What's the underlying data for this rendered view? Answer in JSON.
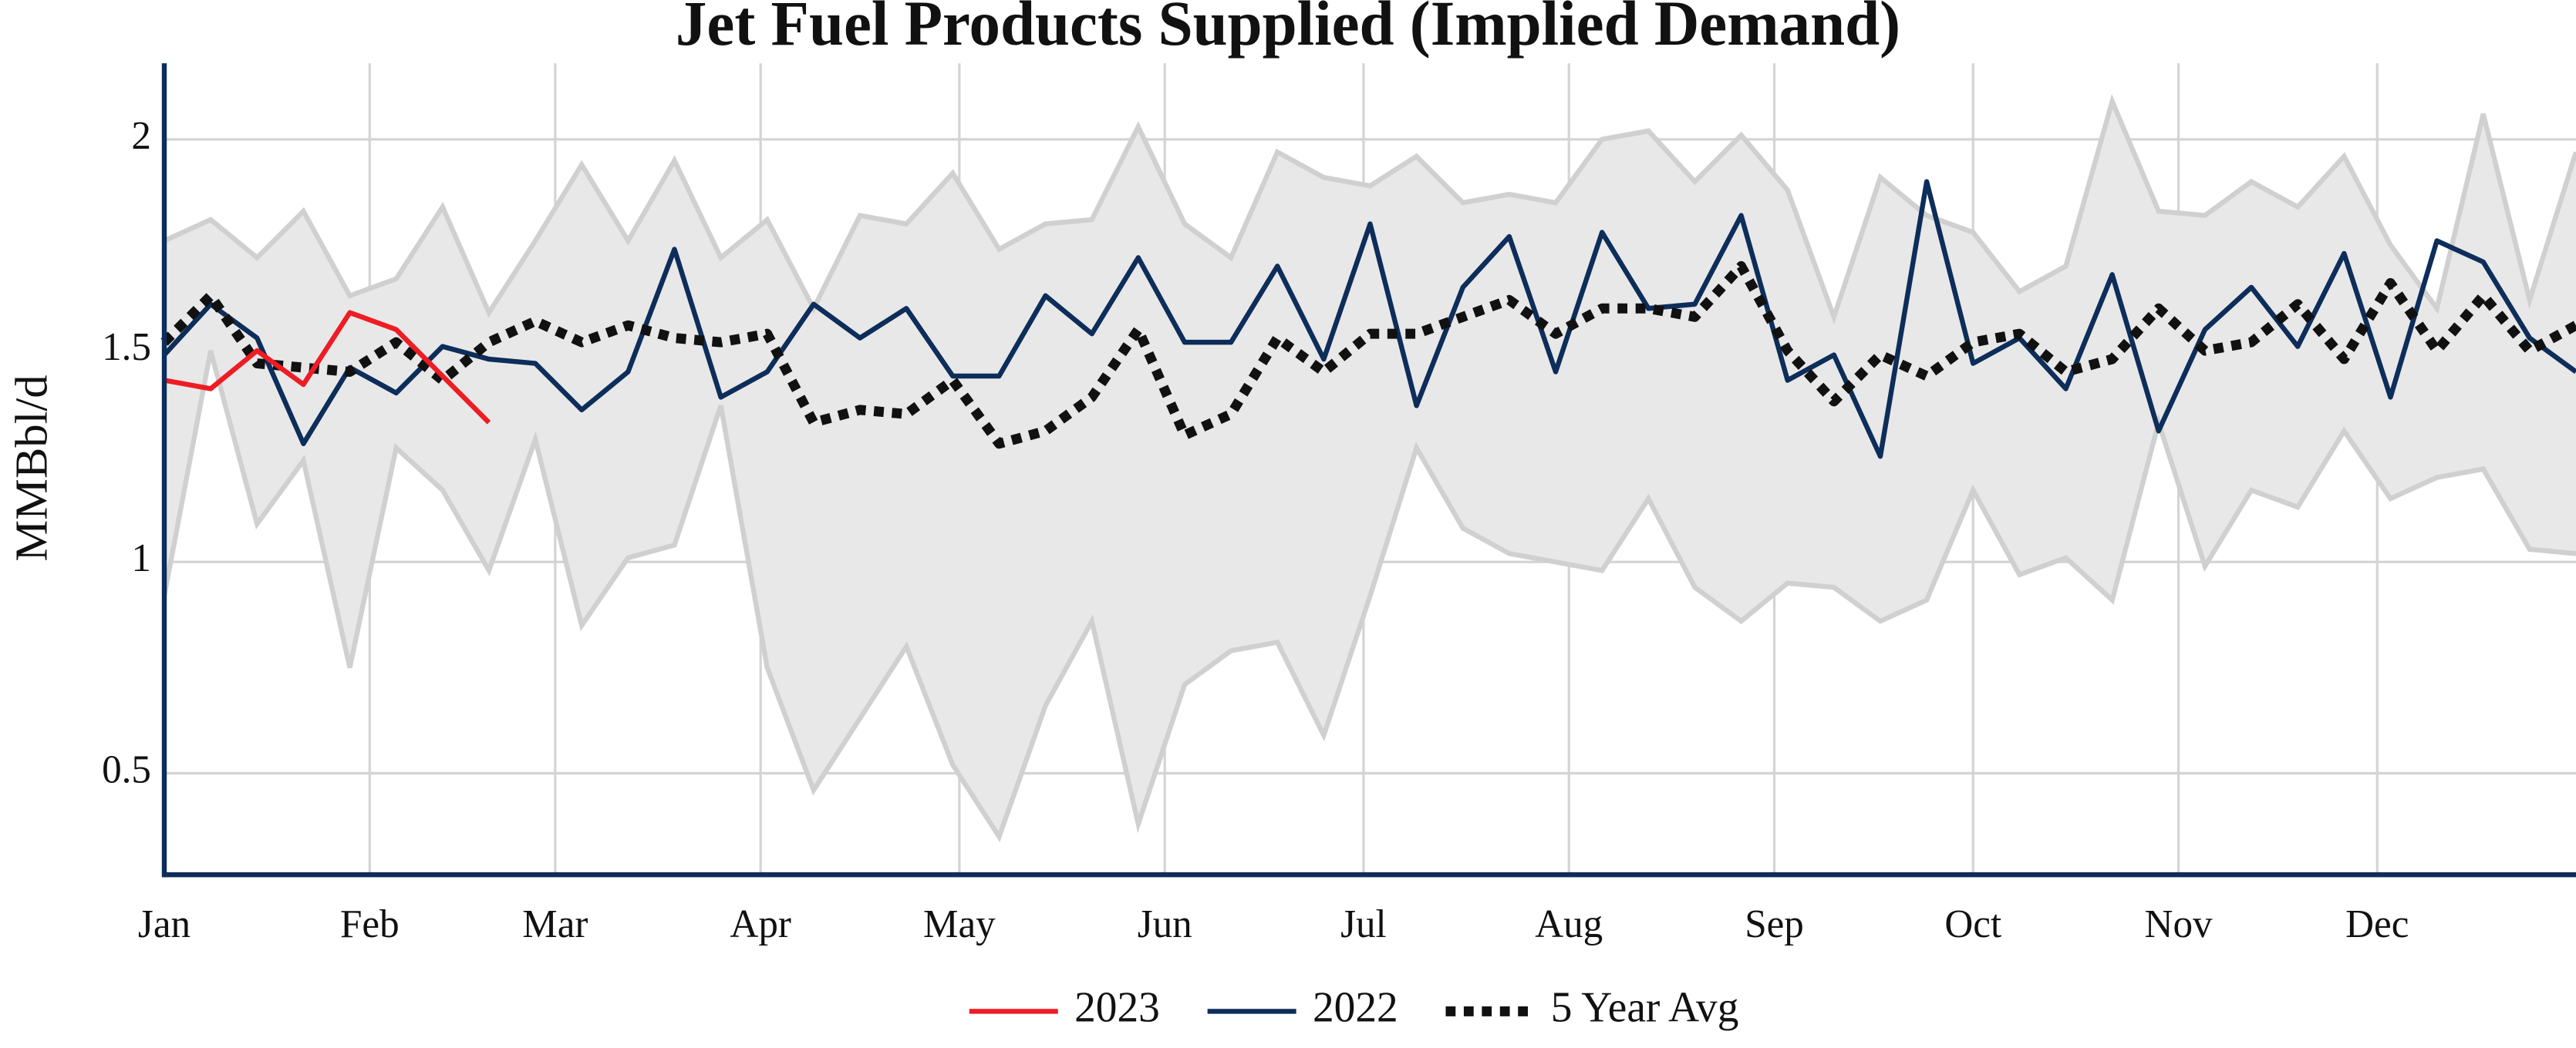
{
  "chart_data": {
    "type": "line",
    "title": "Jet Fuel Products Supplied (Implied Demand)",
    "y_label": "MMBbl/d",
    "x": [
      1,
      8,
      15,
      22,
      29,
      36,
      43,
      50,
      57,
      64,
      71,
      78,
      85,
      92,
      99,
      106,
      113,
      120,
      127,
      134,
      141,
      148,
      155,
      162,
      169,
      176,
      183,
      190,
      197,
      204,
      211,
      218,
      225,
      232,
      239,
      246,
      253,
      260,
      267,
      274,
      281,
      288,
      295,
      302,
      309,
      316,
      323,
      330,
      337,
      344,
      351,
      358,
      365
    ],
    "xlim": [
      1,
      365
    ],
    "xticks": [
      {
        "value": 1,
        "label": "Jan"
      },
      {
        "value": 32,
        "label": "Feb"
      },
      {
        "value": 60,
        "label": "Mar"
      },
      {
        "value": 91,
        "label": "Apr"
      },
      {
        "value": 121,
        "label": "May"
      },
      {
        "value": 152,
        "label": "Jun"
      },
      {
        "value": 182,
        "label": "Jul"
      },
      {
        "value": 213,
        "label": "Aug"
      },
      {
        "value": 244,
        "label": "Sep"
      },
      {
        "value": 274,
        "label": "Oct"
      },
      {
        "value": 305,
        "label": "Nov"
      },
      {
        "value": 335,
        "label": "Dec"
      }
    ],
    "ylim": [
      0.26,
      2.18
    ],
    "yticks": [
      0.5,
      1,
      1.5,
      2
    ],
    "grid": true,
    "legend": "bottom",
    "range": {
      "color": "#e8e8e8",
      "edge_color": "#d0d0d0",
      "max": [
        1.76,
        1.81,
        1.72,
        1.83,
        1.63,
        1.67,
        1.84,
        1.59,
        1.76,
        1.94,
        1.76,
        1.95,
        1.72,
        1.81,
        1.6,
        1.82,
        1.8,
        1.92,
        1.74,
        1.8,
        1.81,
        2.03,
        1.8,
        1.72,
        1.97,
        1.91,
        1.89,
        1.96,
        1.85,
        1.87,
        1.85,
        2.0,
        2.02,
        1.9,
        2.01,
        1.88,
        1.58,
        1.91,
        1.82,
        1.78,
        1.64,
        1.7,
        2.09,
        1.83,
        1.82,
        1.9,
        1.84,
        1.96,
        1.75,
        1.6,
        2.06,
        1.62,
        1.97
      ],
      "min": [
        0.92,
        1.5,
        1.09,
        1.24,
        0.75,
        1.27,
        1.17,
        0.98,
        1.29,
        0.85,
        1.01,
        1.04,
        1.37,
        0.75,
        0.46,
        0.63,
        0.8,
        0.52,
        0.35,
        0.66,
        0.86,
        0.38,
        0.71,
        0.79,
        0.81,
        0.59,
        0.92,
        1.27,
        1.08,
        1.02,
        1.0,
        0.98,
        1.15,
        0.94,
        0.86,
        0.95,
        0.94,
        0.86,
        0.91,
        1.17,
        0.97,
        1.01,
        0.91,
        1.33,
        0.99,
        1.17,
        1.13,
        1.31,
        1.15,
        1.2,
        1.22,
        1.03,
        1.02
      ]
    },
    "series": [
      {
        "name": "2023",
        "color": "#ee1c25",
        "dash": false,
        "values": [
          1.43,
          1.41,
          1.5,
          1.42,
          1.59,
          1.55,
          1.44,
          1.33,
          null,
          null,
          null,
          null,
          null,
          null,
          null,
          null,
          null,
          null,
          null,
          null,
          null,
          null,
          null,
          null,
          null,
          null,
          null,
          null,
          null,
          null,
          null,
          null,
          null,
          null,
          null,
          null,
          null,
          null,
          null,
          null,
          null,
          null,
          null,
          null,
          null,
          null,
          null,
          null,
          null,
          null,
          null,
          null,
          null
        ]
      },
      {
        "name": "2022",
        "color": "#0d2d5a",
        "dash": false,
        "values": [
          1.49,
          1.61,
          1.53,
          1.28,
          1.46,
          1.4,
          1.51,
          1.48,
          1.47,
          1.36,
          1.45,
          1.74,
          1.39,
          1.45,
          1.61,
          1.53,
          1.6,
          1.44,
          1.44,
          1.63,
          1.54,
          1.72,
          1.52,
          1.52,
          1.7,
          1.48,
          1.8,
          1.37,
          1.65,
          1.77,
          1.45,
          1.78,
          1.6,
          1.61,
          1.82,
          1.43,
          1.49,
          1.25,
          1.9,
          1.47,
          1.53,
          1.41,
          1.68,
          1.31,
          1.55,
          1.65,
          1.51,
          1.73,
          1.39,
          1.76,
          1.71,
          1.53,
          1.45
        ]
      },
      {
        "name": "5 Year Avg",
        "color": "#111111",
        "dash": true,
        "values": [
          1.52,
          1.63,
          1.47,
          1.46,
          1.45,
          1.52,
          1.43,
          1.52,
          1.57,
          1.52,
          1.56,
          1.53,
          1.52,
          1.54,
          1.33,
          1.36,
          1.35,
          1.43,
          1.28,
          1.31,
          1.39,
          1.55,
          1.3,
          1.35,
          1.53,
          1.45,
          1.54,
          1.54,
          1.58,
          1.62,
          1.54,
          1.6,
          1.6,
          1.58,
          1.7,
          1.5,
          1.38,
          1.49,
          1.44,
          1.52,
          1.54,
          1.45,
          1.48,
          1.6,
          1.5,
          1.52,
          1.61,
          1.48,
          1.66,
          1.5,
          1.63,
          1.5,
          1.56
        ]
      }
    ]
  }
}
